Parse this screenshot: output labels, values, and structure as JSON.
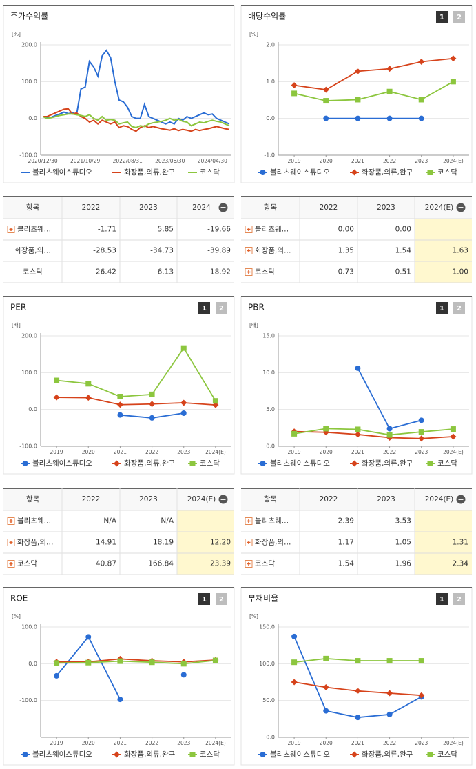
{
  "chart_data": [
    {
      "type": "line",
      "title": "주가수익률",
      "y_unit": "[%]",
      "legend": "bottom",
      "grid": true,
      "categories": [
        "2020/12/30",
        null,
        null,
        null,
        null,
        null,
        null,
        null,
        null,
        null,
        "2021/10/29",
        null,
        null,
        null,
        null,
        null,
        null,
        null,
        null,
        null,
        "2022/08/31",
        null,
        null,
        null,
        null,
        null,
        null,
        null,
        null,
        null,
        "2023/06/30",
        null,
        null,
        null,
        null,
        null,
        null,
        null,
        null,
        null,
        "2024/04/30",
        null,
        null,
        null,
        null
      ],
      "ylim": [
        -100,
        200
      ],
      "yticks": [
        {
          "value": -100,
          "label": "-100.0"
        },
        {
          "value": 0,
          "label": "0.0"
        },
        {
          "value": 100,
          "label": "100.0"
        },
        {
          "value": 200,
          "label": "200.0"
        }
      ],
      "series": [
        {
          "name": "블리츠웨이스튜디오",
          "color": "#2a6dd4",
          "values": [
            5,
            2,
            3,
            8,
            12,
            17,
            13,
            15,
            12,
            80,
            85,
            155,
            140,
            115,
            170,
            185,
            165,
            100,
            50,
            45,
            30,
            5,
            0,
            0,
            38,
            5,
            0,
            -5,
            -10,
            -15,
            -10,
            -15,
            0,
            -5,
            5,
            0,
            5,
            10,
            15,
            10,
            12,
            0,
            -5,
            -10,
            -15
          ]
        },
        {
          "name": "화장품,의류,완구",
          "color": "#d6431b",
          "values": [
            5,
            5,
            10,
            15,
            20,
            25,
            26,
            12,
            15,
            5,
            0,
            -10,
            -5,
            -15,
            -5,
            -10,
            -15,
            -10,
            -25,
            -20,
            -22,
            -30,
            -35,
            -25,
            -20,
            -25,
            -22,
            -25,
            -28,
            -30,
            -32,
            -28,
            -33,
            -30,
            -32,
            -35,
            -30,
            -33,
            -30,
            -28,
            -25,
            -22,
            -25,
            -28,
            -30
          ]
        },
        {
          "name": "코스닥",
          "color": "#8cc63e",
          "values": [
            5,
            0,
            2,
            5,
            8,
            10,
            12,
            12,
            10,
            8,
            5,
            10,
            0,
            -5,
            5,
            -5,
            -3,
            -5,
            -15,
            -12,
            -10,
            -22,
            -25,
            -20,
            -22,
            -15,
            -12,
            -10,
            -8,
            -5,
            0,
            -5,
            -2,
            -8,
            -10,
            -20,
            -15,
            -10,
            -12,
            -8,
            -5,
            -8,
            -10,
            -15,
            -20
          ]
        }
      ]
    },
    {
      "type": "line",
      "title": "배당수익률",
      "pager": [
        "1",
        "2"
      ],
      "y_unit": "[%]",
      "legend": "bottom",
      "grid": true,
      "categories": [
        "2019",
        "2020",
        "2021",
        "2022",
        "2023",
        "2024(E)"
      ],
      "ylim": [
        -1,
        2
      ],
      "yticks": [
        {
          "value": -1,
          "label": "-1.0"
        },
        {
          "value": 0,
          "label": "0.0"
        },
        {
          "value": 1,
          "label": "1.0"
        },
        {
          "value": 2,
          "label": "2.0"
        }
      ],
      "series": [
        {
          "name": "블리츠웨이스튜디오",
          "color": "#2a6dd4",
          "marker": "circle",
          "values": [
            null,
            0,
            0,
            0,
            0,
            null
          ]
        },
        {
          "name": "화장품,의류,완구",
          "color": "#d6431b",
          "marker": "diamond",
          "values": [
            0.9,
            0.78,
            1.28,
            1.35,
            1.54,
            1.63
          ]
        },
        {
          "name": "코스닥",
          "color": "#8cc63e",
          "marker": "square",
          "values": [
            0.68,
            0.48,
            0.51,
            0.73,
            0.51,
            1.0
          ]
        }
      ]
    },
    {
      "type": "line",
      "title": "PER",
      "pager": [
        "1",
        "2"
      ],
      "y_unit": "[배]",
      "legend": "bottom",
      "grid": true,
      "categories": [
        "2019",
        "2020",
        "2021",
        "2022",
        "2023",
        "2024(E)"
      ],
      "ylim": [
        -100,
        200
      ],
      "yticks": [
        {
          "value": -100,
          "label": "-100.0"
        },
        {
          "value": 0,
          "label": "0.0"
        },
        {
          "value": 100,
          "label": "100.0"
        },
        {
          "value": 200,
          "label": "200.0"
        }
      ],
      "series": [
        {
          "name": "블리츠웨이스튜디오",
          "color": "#2a6dd4",
          "marker": "circle",
          "values": [
            null,
            null,
            -15,
            -23,
            -10,
            null
          ]
        },
        {
          "name": "화장품,의류,완구",
          "color": "#d6431b",
          "marker": "diamond",
          "values": [
            33,
            32,
            13,
            14.91,
            18.19,
            12.2
          ]
        },
        {
          "name": "코스닥",
          "color": "#8cc63e",
          "marker": "square",
          "values": [
            79,
            70,
            35,
            40.87,
            166.84,
            23.39
          ]
        }
      ]
    },
    {
      "type": "line",
      "title": "PBR",
      "pager": [
        "1",
        "2"
      ],
      "y_unit": "[배]",
      "legend": "bottom",
      "grid": true,
      "categories": [
        "2019",
        "2020",
        "2021",
        "2022",
        "2023",
        "2024(E)"
      ],
      "ylim": [
        0,
        15
      ],
      "yticks": [
        {
          "value": 0,
          "label": "0.0"
        },
        {
          "value": 5,
          "label": "5.0"
        },
        {
          "value": 10,
          "label": "10.0"
        },
        {
          "value": 15,
          "label": "15.0"
        }
      ],
      "series": [
        {
          "name": "블리츠웨이스튜디오",
          "color": "#2a6dd4",
          "marker": "circle",
          "values": [
            null,
            null,
            10.6,
            2.39,
            3.53,
            null
          ]
        },
        {
          "name": "화장품,의류,완구",
          "color": "#d6431b",
          "marker": "diamond",
          "values": [
            2.0,
            1.9,
            1.6,
            1.17,
            1.05,
            1.31
          ]
        },
        {
          "name": "코스닥",
          "color": "#8cc63e",
          "marker": "square",
          "values": [
            1.7,
            2.4,
            2.3,
            1.54,
            1.96,
            2.34
          ]
        }
      ]
    },
    {
      "type": "line",
      "title": "ROE",
      "pager": [
        "1",
        "2"
      ],
      "y_unit": "[%]",
      "legend": "bottom",
      "grid": true,
      "categories": [
        "2019",
        "2020",
        "2021",
        "2022",
        "2023",
        "2024(E)"
      ],
      "ylim": [
        -200,
        100
      ],
      "yticks": [
        {
          "value": -100,
          "label": "-100.0"
        },
        {
          "value": 0,
          "label": "0.0"
        },
        {
          "value": 100,
          "label": "100.0"
        }
      ],
      "series": [
        {
          "name": "블리츠웨이스튜디오",
          "color": "#2a6dd4",
          "marker": "circle",
          "values": [
            -33,
            73,
            -97,
            null,
            -30,
            null
          ]
        },
        {
          "name": "화장품,의류,완구",
          "color": "#d6431b",
          "marker": "diamond",
          "values": [
            5,
            5,
            13,
            8,
            5,
            10
          ]
        },
        {
          "name": "코스닥",
          "color": "#8cc63e",
          "marker": "square",
          "values": [
            2,
            3,
            7,
            4,
            0,
            9
          ]
        }
      ]
    },
    {
      "type": "line",
      "title": "부채비율",
      "pager": [
        "1",
        "2"
      ],
      "y_unit": "[%]",
      "legend": "bottom",
      "grid": true,
      "categories": [
        "2019",
        "2020",
        "2021",
        "2022",
        "2023",
        "2024(E)"
      ],
      "ylim": [
        0,
        150
      ],
      "yticks": [
        {
          "value": 0,
          "label": "0.0"
        },
        {
          "value": 50,
          "label": "50.0"
        },
        {
          "value": 100,
          "label": "100.0"
        },
        {
          "value": 150,
          "label": "150.0"
        }
      ],
      "series": [
        {
          "name": "블리츠웨이스튜디오",
          "color": "#2a6dd4",
          "marker": "circle",
          "values": [
            137,
            36,
            27,
            31,
            55,
            null
          ]
        },
        {
          "name": "화장품,의류,완구",
          "color": "#d6431b",
          "marker": "diamond",
          "values": [
            75,
            68,
            63,
            60,
            57,
            null
          ]
        },
        {
          "name": "코스닥",
          "color": "#8cc63e",
          "marker": "square",
          "values": [
            102,
            107,
            104,
            104,
            104,
            null
          ]
        }
      ]
    }
  ],
  "tables": [
    {
      "header": [
        "항목",
        "2022",
        "2023",
        "2024"
      ],
      "highlight_last": false,
      "expandable": [
        true,
        false,
        false
      ],
      "rows": [
        [
          "블리츠웨…",
          "-1.71",
          "5.85",
          "-19.66"
        ],
        [
          "화장품,의…",
          "-28.53",
          "-34.73",
          "-39.89"
        ],
        [
          "코스닥",
          "-26.42",
          "-6.13",
          "-18.92"
        ]
      ]
    },
    {
      "header": [
        "항목",
        "2022",
        "2023",
        "2024(E)"
      ],
      "highlight_last": true,
      "expandable": [
        true,
        true,
        true
      ],
      "rows": [
        [
          "블리츠웨…",
          "0.00",
          "0.00",
          null
        ],
        [
          "화장품,의…",
          "1.35",
          "1.54",
          "1.63"
        ],
        [
          "코스닥",
          "0.73",
          "0.51",
          "1.00"
        ]
      ]
    },
    {
      "header": [
        "항목",
        "2022",
        "2023",
        "2024(E)"
      ],
      "highlight_last": true,
      "expandable": [
        true,
        true,
        true
      ],
      "rows": [
        [
          "블리츠웨…",
          "N/A",
          "N/A",
          null
        ],
        [
          "화장품,의…",
          "14.91",
          "18.19",
          "12.20"
        ],
        [
          "코스닥",
          "40.87",
          "166.84",
          "23.39"
        ]
      ]
    },
    {
      "header": [
        "항목",
        "2022",
        "2023",
        "2024(E)"
      ],
      "highlight_last": true,
      "expandable": [
        true,
        true,
        true
      ],
      "rows": [
        [
          "블리츠웨…",
          "2.39",
          "3.53",
          null
        ],
        [
          "화장품,의…",
          "1.17",
          "1.05",
          "1.31"
        ],
        [
          "코스닥",
          "1.54",
          "1.96",
          "2.34"
        ]
      ]
    }
  ]
}
